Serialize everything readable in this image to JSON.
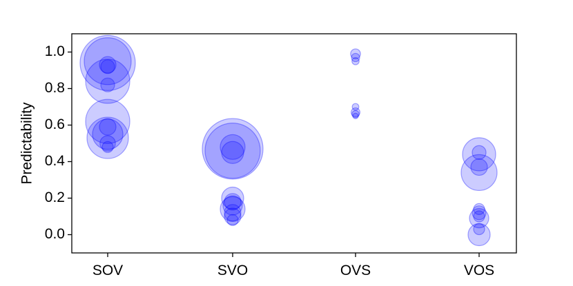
{
  "chart_data": {
    "type": "scatter",
    "title": "",
    "xlabel": "",
    "ylabel": "Predictability",
    "categories": [
      "SOV",
      "SVO",
      "OVS",
      "VOS"
    ],
    "ylim": [
      -0.1,
      1.1
    ],
    "yticks": [
      "0.0",
      "0.2",
      "0.4",
      "0.6",
      "0.8",
      "1.0"
    ],
    "grid": false,
    "legend": "none",
    "marker_color": "#0000ff",
    "marker_fill_opacity": 0.2,
    "points": [
      {
        "category": "SOV",
        "y": 0.94,
        "size": 1.0
      },
      {
        "category": "SOV",
        "y": 0.95,
        "size": 0.85
      },
      {
        "category": "SOV",
        "y": 0.93,
        "size": 0.3
      },
      {
        "category": "SOV",
        "y": 0.92,
        "size": 0.25
      },
      {
        "category": "SOV",
        "y": 0.84,
        "size": 0.8
      },
      {
        "category": "SOV",
        "y": 0.82,
        "size": 0.25
      },
      {
        "category": "SOV",
        "y": 0.62,
        "size": 0.8
      },
      {
        "category": "SOV",
        "y": 0.59,
        "size": 0.3
      },
      {
        "category": "SOV",
        "y": 0.55,
        "size": 0.55
      },
      {
        "category": "SOV",
        "y": 0.53,
        "size": 0.75
      },
      {
        "category": "SOV",
        "y": 0.5,
        "size": 0.28
      },
      {
        "category": "SOV",
        "y": 0.48,
        "size": 0.2
      },
      {
        "category": "SVO",
        "y": 0.47,
        "size": 1.1
      },
      {
        "category": "SVO",
        "y": 0.46,
        "size": 1.0
      },
      {
        "category": "SVO",
        "y": 0.48,
        "size": 0.45
      },
      {
        "category": "SVO",
        "y": 0.45,
        "size": 0.4
      },
      {
        "category": "SVO",
        "y": 0.2,
        "size": 0.4
      },
      {
        "category": "SVO",
        "y": 0.18,
        "size": 0.3
      },
      {
        "category": "SVO",
        "y": 0.16,
        "size": 0.35
      },
      {
        "category": "SVO",
        "y": 0.14,
        "size": 0.45
      },
      {
        "category": "SVO",
        "y": 0.12,
        "size": 0.3
      },
      {
        "category": "SVO",
        "y": 0.1,
        "size": 0.3
      },
      {
        "category": "SVO",
        "y": 0.08,
        "size": 0.2
      },
      {
        "category": "OVS",
        "y": 0.99,
        "size": 0.18
      },
      {
        "category": "OVS",
        "y": 0.97,
        "size": 0.15
      },
      {
        "category": "OVS",
        "y": 0.95,
        "size": 0.13
      },
      {
        "category": "OVS",
        "y": 0.7,
        "size": 0.12
      },
      {
        "category": "OVS",
        "y": 0.67,
        "size": 0.16
      },
      {
        "category": "OVS",
        "y": 0.66,
        "size": 0.13
      },
      {
        "category": "OVS",
        "y": 0.65,
        "size": 0.1
      },
      {
        "category": "VOS",
        "y": 0.45,
        "size": 0.25
      },
      {
        "category": "VOS",
        "y": 0.44,
        "size": 0.6
      },
      {
        "category": "VOS",
        "y": 0.37,
        "size": 0.3
      },
      {
        "category": "VOS",
        "y": 0.34,
        "size": 0.65
      },
      {
        "category": "VOS",
        "y": 0.14,
        "size": 0.2
      },
      {
        "category": "VOS",
        "y": 0.12,
        "size": 0.25
      },
      {
        "category": "VOS",
        "y": 0.1,
        "size": 0.2
      },
      {
        "category": "VOS",
        "y": 0.09,
        "size": 0.35
      },
      {
        "category": "VOS",
        "y": 0.03,
        "size": 0.2
      },
      {
        "category": "VOS",
        "y": 0.0,
        "size": 0.4
      }
    ]
  }
}
